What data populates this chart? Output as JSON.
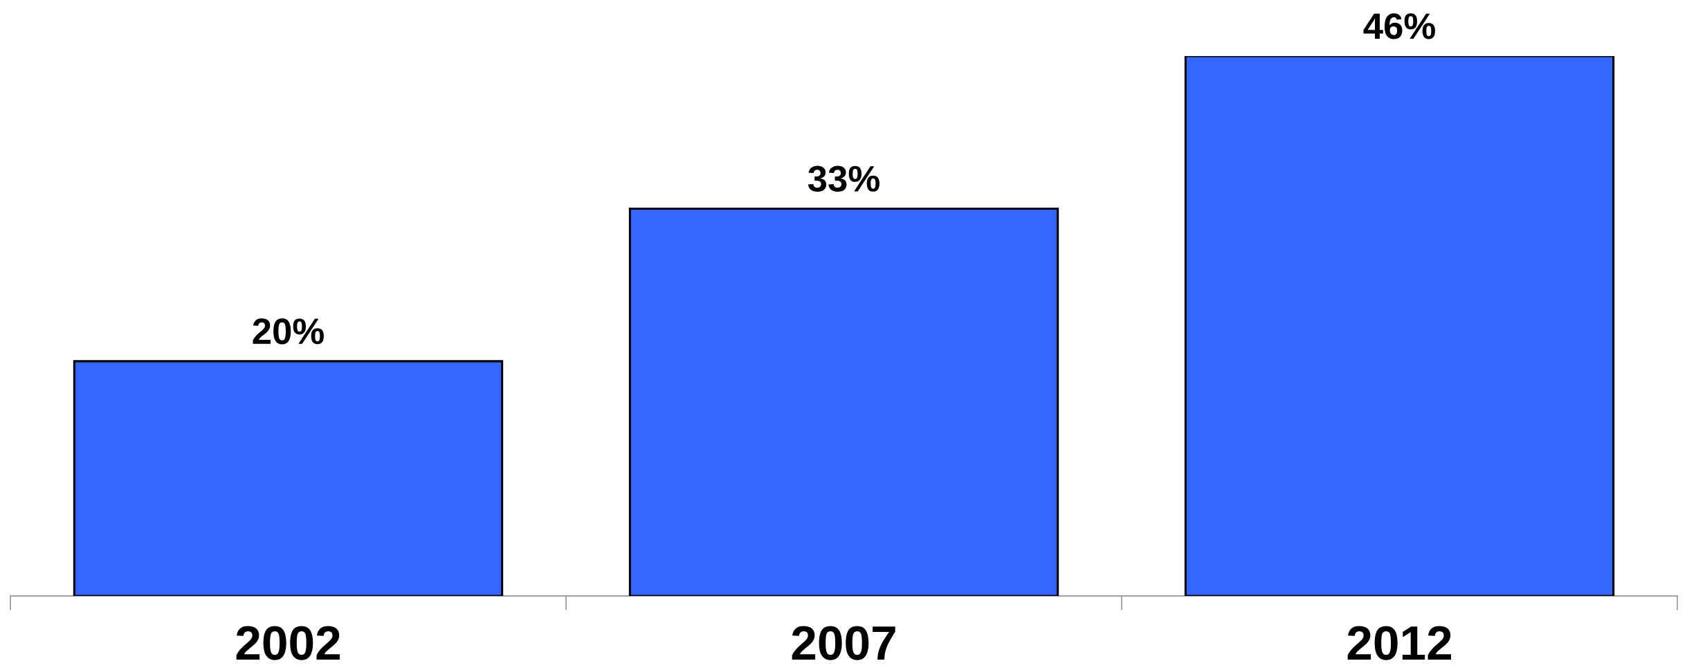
{
  "chart_data": {
    "type": "bar",
    "categories": [
      "2002",
      "2007",
      "2012"
    ],
    "values": [
      20,
      33,
      46
    ],
    "value_labels": [
      "20%",
      "33%",
      "46%"
    ],
    "color": "#3366ff",
    "grid": false,
    "legend": false
  }
}
